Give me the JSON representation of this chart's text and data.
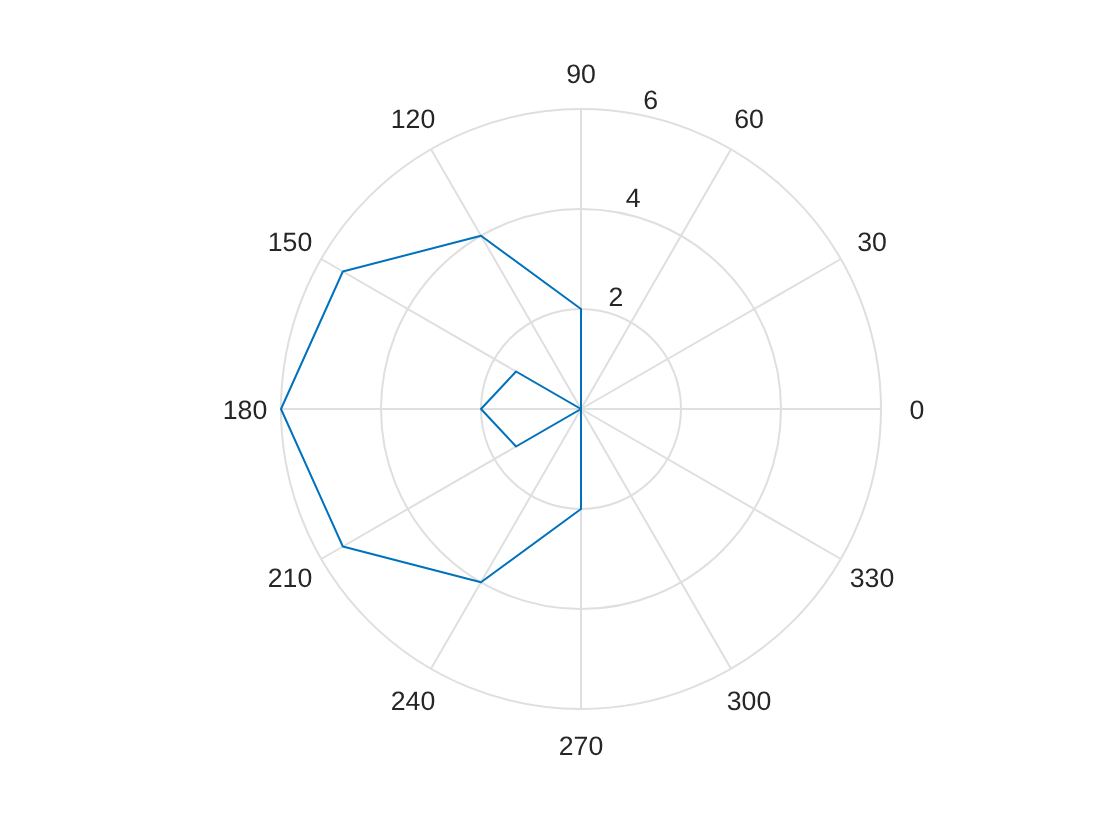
{
  "chart_data": {
    "type": "radar",
    "categories": [
      "90",
      "60",
      "30",
      "0",
      "330",
      "300",
      "270",
      "240",
      "210",
      "180",
      "150",
      "120"
    ],
    "series": [
      {
        "color": "#0072bd",
        "values": [
          2,
          0,
          null,
          null,
          null,
          0,
          2,
          4,
          5.5,
          6,
          5.5,
          4
        ]
      },
      {
        "color": "#0072bd",
        "values": [
          null,
          null,
          null,
          null,
          null,
          null,
          null,
          0,
          1.5,
          2,
          1.5,
          0
        ]
      }
    ],
    "ylim": [
      0,
      6
    ],
    "yticks": [
      2,
      4,
      6
    ],
    "grid": true
  }
}
